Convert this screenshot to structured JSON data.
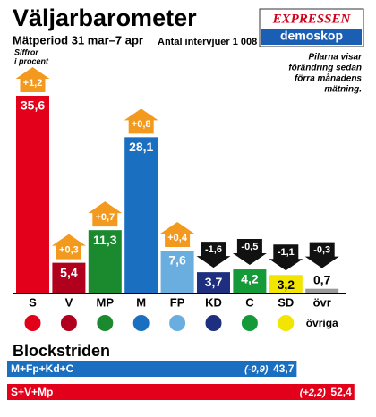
{
  "chart_data": [
    {
      "type": "bar",
      "title": "Väljarbarometer",
      "subtitle": "Mätperiod 31 mar–7 apr",
      "interviews": "Antal intervjuer 1 008",
      "unit_note": [
        "Siffror",
        "i procent"
      ],
      "logo": [
        "EXPRESSEN",
        "demoskop"
      ],
      "note": [
        "Pilarna visar",
        "förändring sedan",
        "förra månadens",
        "mätning."
      ],
      "categories": [
        "S",
        "V",
        "MP",
        "M",
        "FP",
        "KD",
        "C",
        "SD",
        "övr"
      ],
      "other_label": "övriga",
      "values": [
        35.6,
        5.4,
        11.3,
        28.1,
        7.6,
        3.7,
        4.2,
        3.2,
        0.7
      ],
      "value_labels": [
        "35,6",
        "5,4",
        "11,3",
        "28,1",
        "7,6",
        "3,7",
        "4,2",
        "3,2",
        "0,7"
      ],
      "changes": [
        1.2,
        0.3,
        0.7,
        0.8,
        0.4,
        -1.6,
        -0.5,
        -1.1,
        -0.3
      ],
      "change_labels": [
        "+1,2",
        "+0,3",
        "+0,7",
        "+0,8",
        "+0,4",
        "-1,6",
        "-0,5",
        "-1,1",
        "-0,3"
      ],
      "colors": [
        "#e3001b",
        "#b0001e",
        "#1b8a2f",
        "#1a6fc0",
        "#6aaee0",
        "#1d2f7e",
        "#159a3a",
        "#f2e500",
        "#9a9a9a"
      ]
    },
    {
      "type": "hbar",
      "title": "Blockstriden",
      "categories": [
        "M+Fp+Kd+C",
        "S+V+Mp"
      ],
      "values": [
        43.7,
        52.4
      ],
      "value_labels": [
        "43,7",
        "52,4"
      ],
      "changes": [
        -0.9,
        2.2
      ],
      "change_labels": [
        "(-0,9)",
        "(+2,2)"
      ],
      "colors": [
        "#1a6fc0",
        "#e3001b"
      ]
    }
  ]
}
